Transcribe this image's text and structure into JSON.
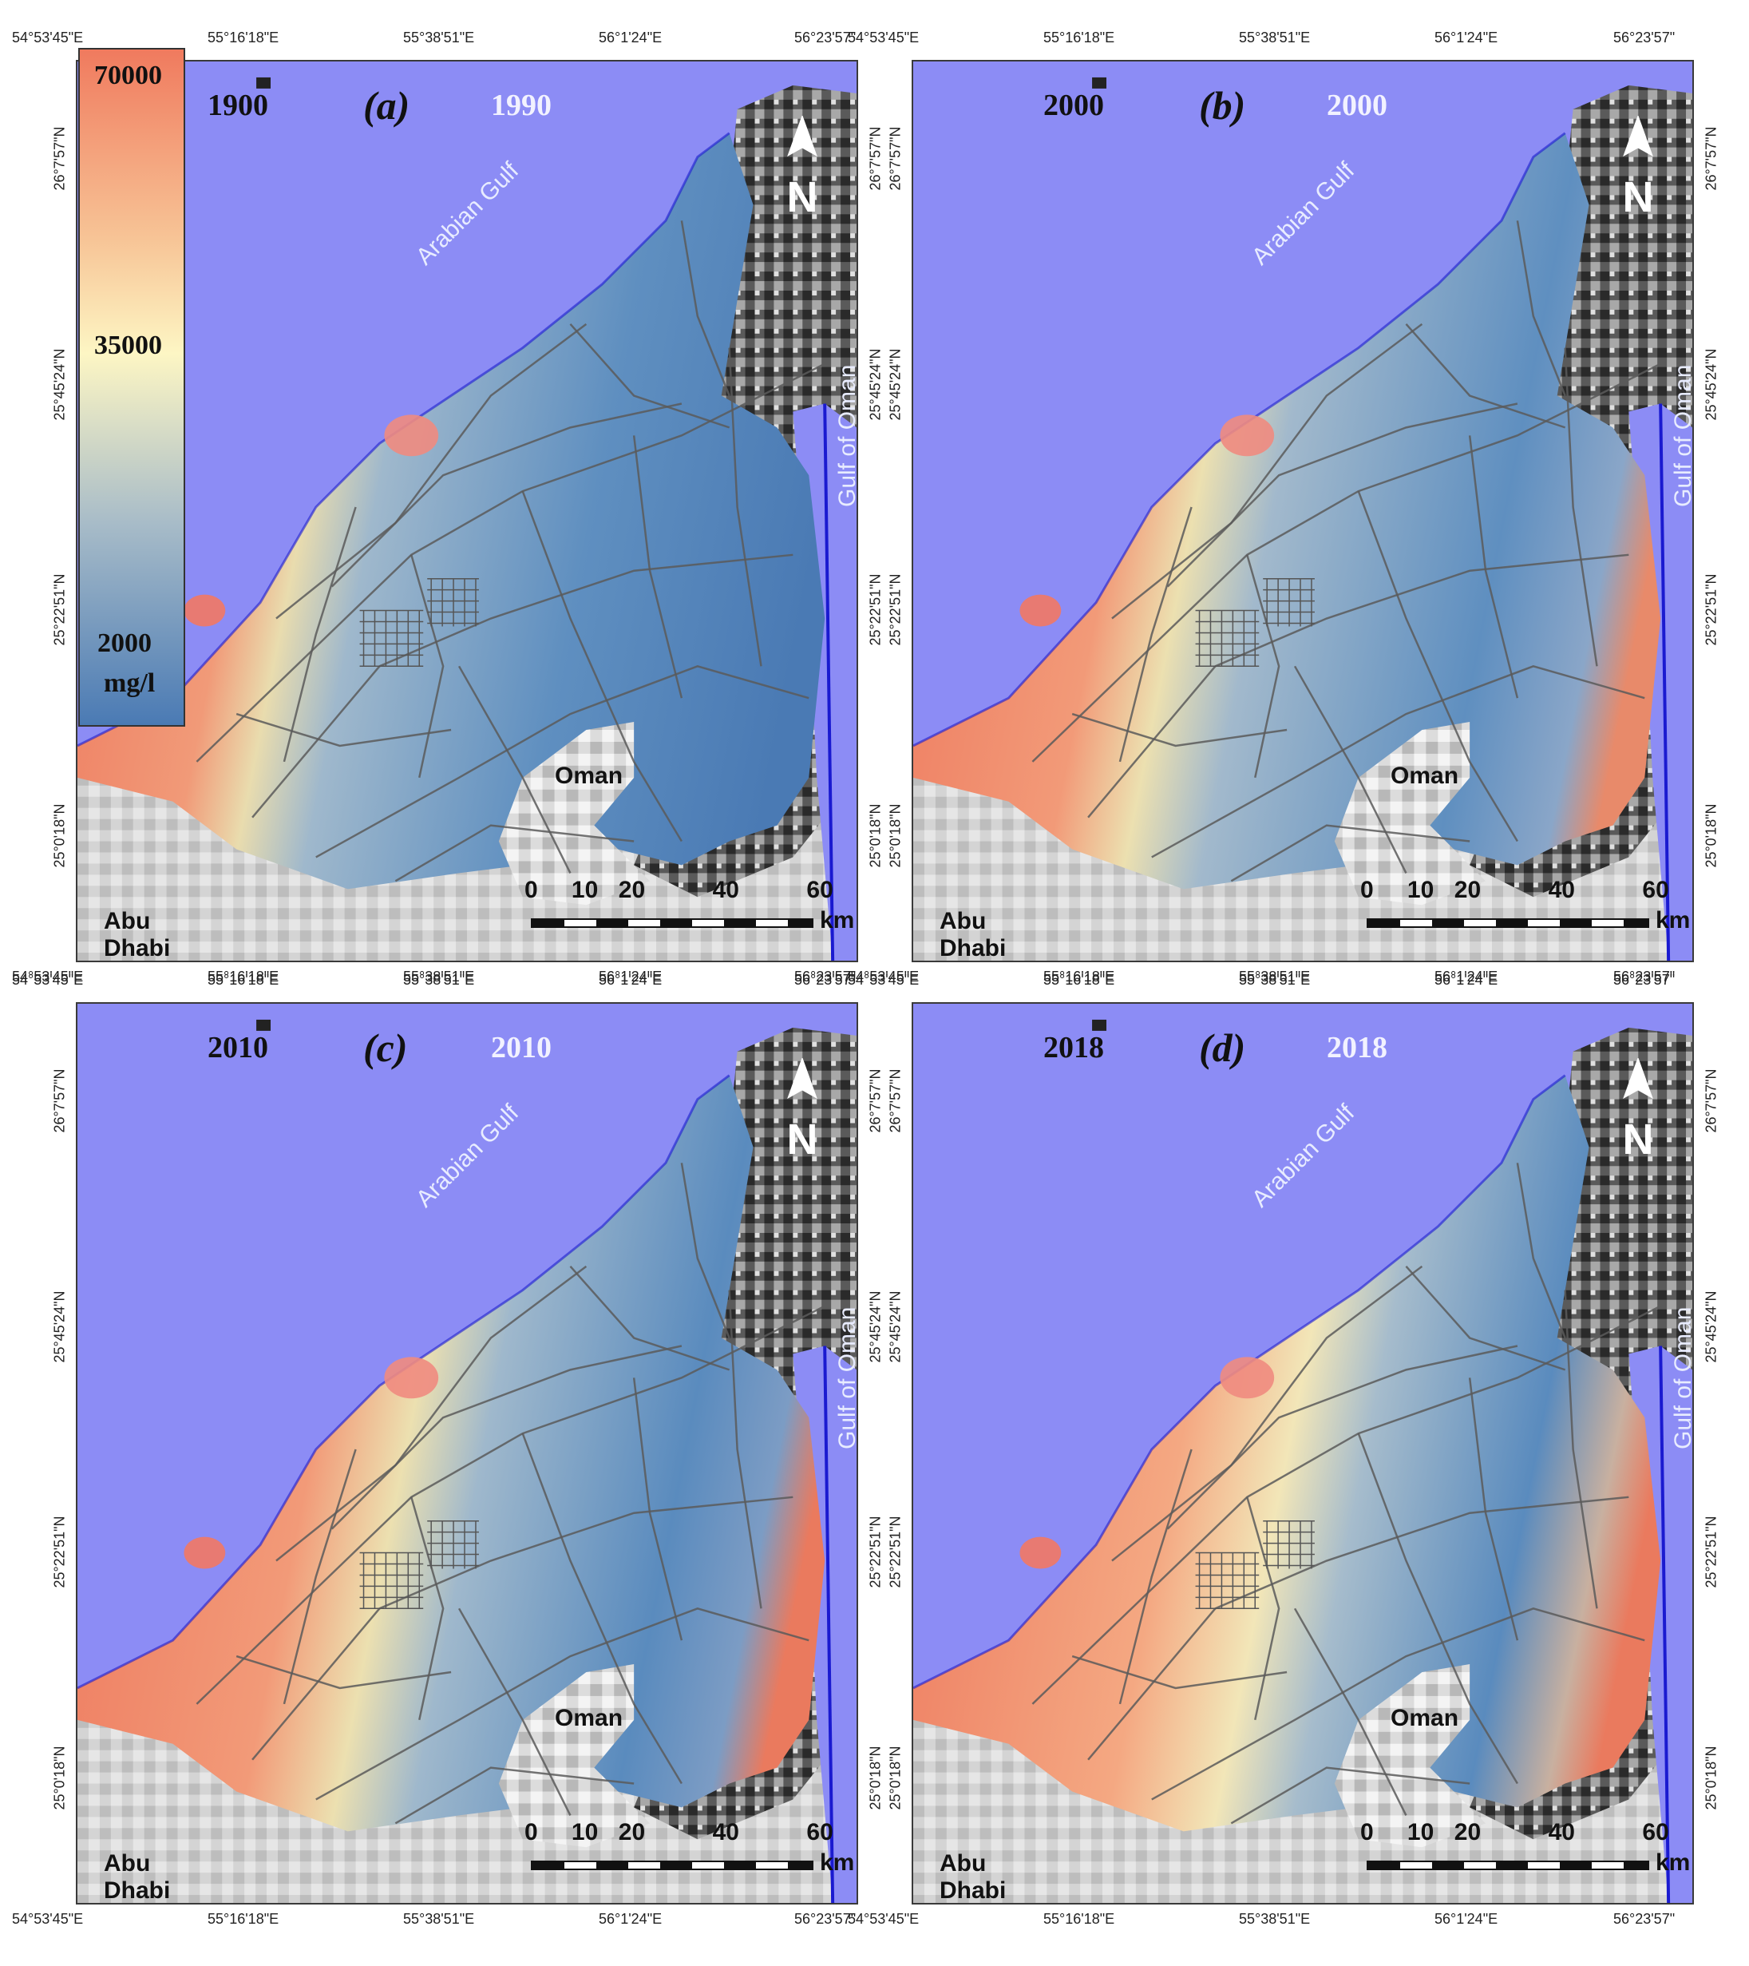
{
  "legend": {
    "max": "70000",
    "mid": "35000",
    "min": "2000",
    "unit": "mg/l",
    "colors": {
      "high": "#f07a5e",
      "mid": "#fdf6c4",
      "low": "#4a7ab4"
    }
  },
  "axes": {
    "x_ticks": [
      "54°53'45\"E",
      "55°16'18\"E",
      "55°38'51\"E",
      "56°1'24\"E",
      "56°23'57\""
    ],
    "y_ticks": [
      "26°7'57\"N",
      "25°45'24\"N",
      "25°22'51\"N",
      "25°0'18\"N"
    ]
  },
  "places": {
    "arabian_gulf": "Arabian Gulf",
    "gulf_of_oman": "Gulf of Oman",
    "oman": "Oman",
    "abu_dhabi": "Abu Dhabi"
  },
  "scale_bar": {
    "ticks": [
      "0",
      "10",
      "20",
      "40",
      "60"
    ],
    "unit": "km"
  },
  "north_arrow": "N",
  "panels": [
    {
      "label": "(a)",
      "year_dark": "1900",
      "year_light": "1990"
    },
    {
      "label": "(b)",
      "year_dark": "2000",
      "year_light": "2000"
    },
    {
      "label": "(c)",
      "year_dark": "2010",
      "year_light": "2010"
    },
    {
      "label": "(d)",
      "year_dark": "2018",
      "year_light": "2018"
    }
  ],
  "colors": {
    "sea": "#8c8cf5",
    "land": "#cfcfcf",
    "coast_edge": "#1a1ad0"
  }
}
